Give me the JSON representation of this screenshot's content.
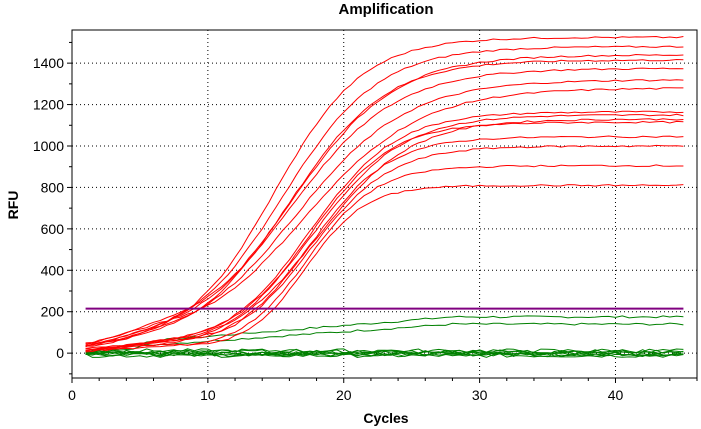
{
  "chart_data": {
    "type": "line",
    "title": "Amplification",
    "xlabel": "Cycles",
    "ylabel": "RFU",
    "xlim": [
      0,
      46
    ],
    "ylim": [
      -120,
      1560
    ],
    "xticks": [
      0,
      10,
      20,
      30,
      40
    ],
    "yticks": [
      0,
      200,
      400,
      600,
      800,
      1000,
      1200,
      1400
    ],
    "grid": true,
    "legend": "none",
    "colors": {
      "positive": "#ff0000",
      "negative": "#008000",
      "threshold": "#800080"
    },
    "threshold": 215,
    "cycles": [
      1,
      45
    ],
    "positive_curves": [
      {
        "plateau": 1520,
        "ct": 11.2,
        "slope": 6.0,
        "base": 5,
        "bump": 15
      },
      {
        "plateau": 1470,
        "ct": 11.5,
        "slope": 6.5,
        "base": 10,
        "bump": 20
      },
      {
        "plateau": 1440,
        "ct": 11.8,
        "slope": 7.0,
        "base": 0,
        "bump": 30
      },
      {
        "plateau": 1400,
        "ct": 12.0,
        "slope": 6.5,
        "base": 15,
        "bump": 10
      },
      {
        "plateau": 1370,
        "ct": 11.6,
        "slope": 7.2,
        "base": 5,
        "bump": 40
      },
      {
        "plateau": 1320,
        "ct": 11.9,
        "slope": 7.5,
        "base": 0,
        "bump": 20
      },
      {
        "plateau": 1270,
        "ct": 12.3,
        "slope": 7.8,
        "base": 10,
        "bump": 35
      },
      {
        "plateau": 1160,
        "ct": 14.0,
        "slope": 5.8,
        "base": 5,
        "bump": 20
      },
      {
        "plateau": 1140,
        "ct": 14.2,
        "slope": 6.0,
        "base": 10,
        "bump": 15
      },
      {
        "plateau": 1130,
        "ct": 14.4,
        "slope": 6.2,
        "base": 0,
        "bump": 25
      },
      {
        "plateau": 1110,
        "ct": 14.1,
        "slope": 5.5,
        "base": 5,
        "bump": 10
      },
      {
        "plateau": 1030,
        "ct": 14.5,
        "slope": 5.2,
        "base": 15,
        "bump": 20
      },
      {
        "plateau": 1000,
        "ct": 14.3,
        "slope": 5.4,
        "base": 0,
        "bump": 30
      },
      {
        "plateau": 900,
        "ct": 14.6,
        "slope": 4.6,
        "base": 5,
        "bump": 15
      },
      {
        "plateau": 800,
        "ct": 14.8,
        "slope": 4.0,
        "base": 10,
        "bump": 25
      }
    ],
    "negative_curves": [
      {
        "drift": 175,
        "start": 60
      },
      {
        "drift": 140,
        "start": 40
      },
      {
        "level": 5
      },
      {
        "level": -5
      },
      {
        "level": 0
      },
      {
        "level": -12
      },
      {
        "level": 8
      },
      {
        "level": -8
      },
      {
        "level": 12
      },
      {
        "level": -2
      }
    ]
  }
}
